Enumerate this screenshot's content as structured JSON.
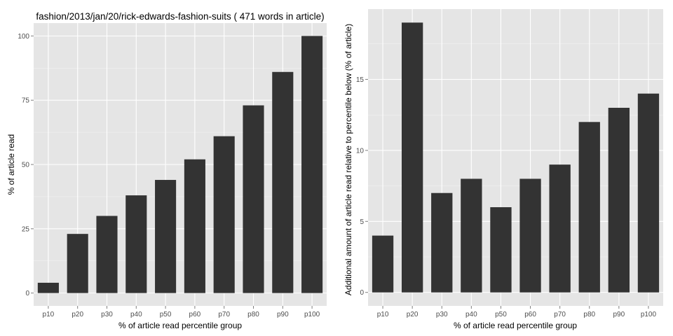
{
  "chart_data": [
    {
      "type": "bar",
      "title": "fashion/2013/jan/20/rick-edwards-fashion-suits ( 471 words in article)",
      "xlabel": "% of article read percentile group",
      "ylabel": "% of article read",
      "categories": [
        "p10",
        "p20",
        "p30",
        "p40",
        "p50",
        "p60",
        "p70",
        "p80",
        "p90",
        "p100"
      ],
      "values": [
        4,
        23,
        30,
        38,
        44,
        52,
        61,
        73,
        86,
        100
      ],
      "ylim": [
        -5,
        105
      ],
      "yticks": [
        0,
        25,
        50,
        75,
        100
      ],
      "grid": true
    },
    {
      "type": "bar",
      "title": "",
      "xlabel": "% of article read percentile group",
      "ylabel": "Additional amount of article read relative to percentile below (% of article)",
      "categories": [
        "p10",
        "p20",
        "p30",
        "p40",
        "p50",
        "p60",
        "p70",
        "p80",
        "p90",
        "p100"
      ],
      "values": [
        4,
        19,
        7,
        8,
        6,
        8,
        9,
        12,
        13,
        14
      ],
      "ylim": [
        -0.95,
        19.95
      ],
      "yticks": [
        0,
        5,
        10,
        15
      ],
      "grid": true
    }
  ],
  "colors": {
    "panel": "#e5e5e5",
    "grid_major": "#ffffff",
    "grid_minor": "#f2f2f2",
    "bar": "#333333"
  }
}
